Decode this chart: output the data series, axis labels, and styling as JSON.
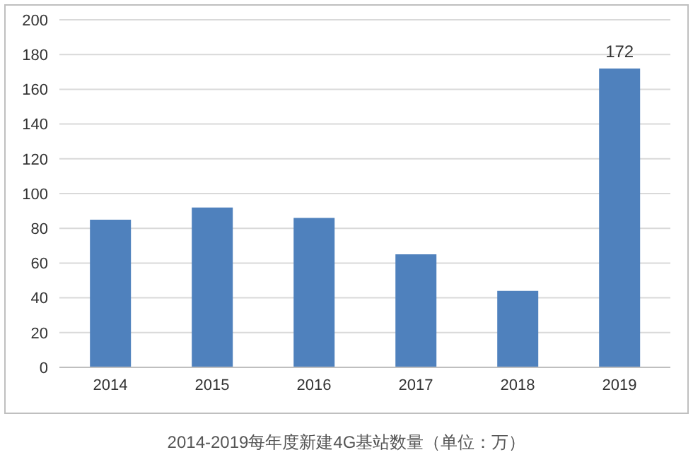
{
  "chart_data": {
    "type": "bar",
    "categories": [
      "2014",
      "2015",
      "2016",
      "2017",
      "2018",
      "2019"
    ],
    "values": [
      85,
      92,
      86,
      65,
      44,
      172
    ],
    "value_labels": [
      null,
      null,
      null,
      null,
      null,
      "172"
    ],
    "color": "#4f81bd",
    "ylim": [
      0,
      200
    ],
    "yticks": [
      0,
      20,
      40,
      60,
      80,
      100,
      120,
      140,
      160,
      180,
      200
    ],
    "grid": "y",
    "annotations": [
      "2014-2019每年度新建4G基站数量（单位：万）"
    ]
  }
}
